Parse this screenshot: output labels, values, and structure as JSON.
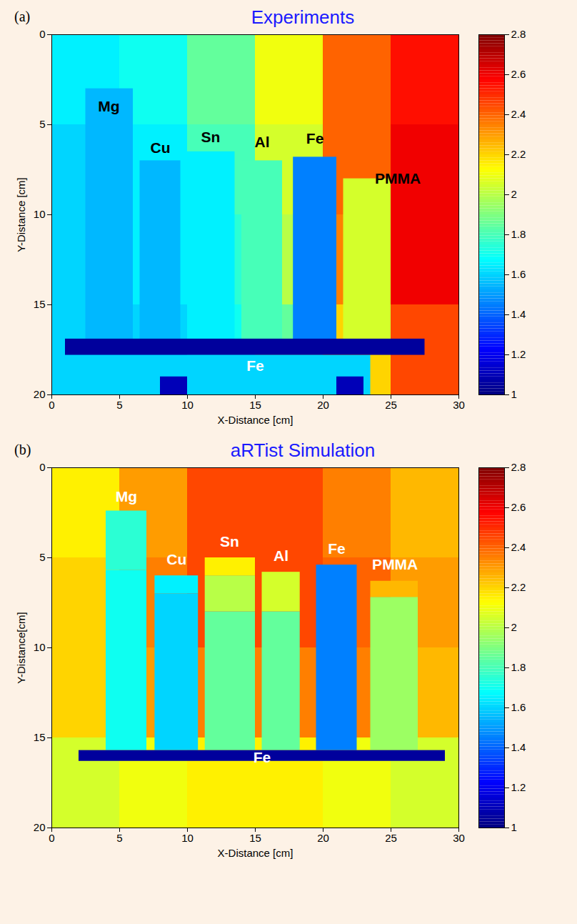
{
  "chart_data": [
    {
      "type": "heatmap",
      "panel": "(a)",
      "title": "Experiments",
      "xlabel": "X-Distance [cm]",
      "ylabel": "Y-Distance [cm]",
      "xlim": [
        0,
        30
      ],
      "ylim": [
        0,
        20
      ],
      "xticks": [
        0,
        5,
        10,
        15,
        20,
        25,
        30
      ],
      "yticks": [
        0,
        5,
        10,
        15,
        20
      ],
      "colorbar": {
        "range": [
          1,
          2.8
        ],
        "ticks": [
          1,
          1.2,
          1.4,
          1.6,
          1.8,
          2,
          2.2,
          2.4,
          2.6,
          2.8
        ]
      },
      "cells": [
        {
          "x1": 0,
          "x2": 5,
          "y1": 0,
          "y2": 5,
          "value": 1.65
        },
        {
          "x1": 5,
          "x2": 10,
          "y1": 0,
          "y2": 5,
          "value": 1.7
        },
        {
          "x1": 10,
          "x2": 15,
          "y1": 0,
          "y2": 5,
          "value": 1.85
        },
        {
          "x1": 15,
          "x2": 20,
          "y1": 0,
          "y2": 5,
          "value": 2.1
        },
        {
          "x1": 20,
          "x2": 25,
          "y1": 0,
          "y2": 5,
          "value": 2.4
        },
        {
          "x1": 25,
          "x2": 30,
          "y1": 0,
          "y2": 5,
          "value": 2.55
        },
        {
          "x1": 0,
          "x2": 5,
          "y1": 5,
          "y2": 10,
          "value": 1.6
        },
        {
          "x1": 5,
          "x2": 10,
          "y1": 5,
          "y2": 10,
          "value": 1.65
        },
        {
          "x1": 10,
          "x2": 15,
          "y1": 5,
          "y2": 10,
          "value": 1.8
        },
        {
          "x1": 15,
          "x2": 20,
          "y1": 5,
          "y2": 10,
          "value": 2.05
        },
        {
          "x1": 20,
          "x2": 25,
          "y1": 5,
          "y2": 10,
          "value": 2.4
        },
        {
          "x1": 25,
          "x2": 30,
          "y1": 5,
          "y2": 10,
          "value": 2.6
        },
        {
          "x1": 0,
          "x2": 5,
          "y1": 10,
          "y2": 15,
          "value": 1.6
        },
        {
          "x1": 5,
          "x2": 10,
          "y1": 10,
          "y2": 15,
          "value": 1.65
        },
        {
          "x1": 10,
          "x2": 15,
          "y1": 10,
          "y2": 15,
          "value": 1.75
        },
        {
          "x1": 15,
          "x2": 20,
          "y1": 10,
          "y2": 15,
          "value": 2.0
        },
        {
          "x1": 20,
          "x2": 25,
          "y1": 10,
          "y2": 15,
          "value": 2.35
        },
        {
          "x1": 25,
          "x2": 30,
          "y1": 10,
          "y2": 15,
          "value": 2.6
        },
        {
          "x1": 0,
          "x2": 5,
          "y1": 15,
          "y2": 20,
          "value": 1.6
        },
        {
          "x1": 5,
          "x2": 10,
          "y1": 15,
          "y2": 20,
          "value": 1.6
        },
        {
          "x1": 10,
          "x2": 15,
          "y1": 15,
          "y2": 20,
          "value": 1.7
        },
        {
          "x1": 15,
          "x2": 20,
          "y1": 15,
          "y2": 20,
          "value": 1.85
        },
        {
          "x1": 20,
          "x2": 25,
          "y1": 15,
          "y2": 20,
          "value": 2.2
        },
        {
          "x1": 25,
          "x2": 30,
          "y1": 15,
          "y2": 20,
          "value": 2.45
        },
        {
          "x1": 2.5,
          "x2": 6,
          "y1": 3,
          "y2": 17,
          "value": 1.55
        },
        {
          "x1": 6.5,
          "x2": 9.5,
          "y1": 7,
          "y2": 17,
          "value": 1.55
        },
        {
          "x1": 10,
          "x2": 13.5,
          "y1": 6.5,
          "y2": 17,
          "value": 1.65
        },
        {
          "x1": 14,
          "x2": 17,
          "y1": 7,
          "y2": 17,
          "value": 1.8
        },
        {
          "x1": 17.8,
          "x2": 21,
          "y1": 6.8,
          "y2": 17,
          "value": 1.45
        },
        {
          "x1": 21.5,
          "x2": 25,
          "y1": 8,
          "y2": 17,
          "value": 2.05
        },
        {
          "x1": 5,
          "x2": 23.5,
          "y1": 17.8,
          "y2": 20,
          "value": 1.6
        },
        {
          "x1": 8,
          "x2": 10,
          "y1": 19,
          "y2": 20,
          "value": 1.1
        },
        {
          "x1": 21,
          "x2": 23,
          "y1": 19,
          "y2": 20,
          "value": 1.1
        },
        {
          "x1": 1,
          "x2": 27.5,
          "y1": 16.9,
          "y2": 17.8,
          "value": 1.05
        }
      ],
      "labels": [
        {
          "text": "Mg",
          "x": 4.2,
          "y": 4,
          "color": "black"
        },
        {
          "text": "Cu",
          "x": 8,
          "y": 6.3,
          "color": "black"
        },
        {
          "text": "Sn",
          "x": 11.7,
          "y": 5.7,
          "color": "black"
        },
        {
          "text": "Al",
          "x": 15.5,
          "y": 6,
          "color": "black"
        },
        {
          "text": "Fe",
          "x": 19.4,
          "y": 5.8,
          "color": "black"
        },
        {
          "text": "PMMA",
          "x": 25.5,
          "y": 8,
          "color": "black"
        },
        {
          "text": "Fe",
          "x": 15,
          "y": 18.4,
          "color": "white"
        }
      ]
    },
    {
      "type": "heatmap",
      "panel": "(b)",
      "title": "aRTist Simulation",
      "xlabel": "X-Distance [cm]",
      "ylabel": "Y-Distance[cm]",
      "xlim": [
        0,
        30
      ],
      "ylim": [
        0,
        20
      ],
      "xticks": [
        0,
        5,
        10,
        15,
        20,
        25,
        30
      ],
      "yticks": [
        0,
        5,
        10,
        15,
        20
      ],
      "colorbar": {
        "range": [
          1,
          2.8
        ],
        "ticks": [
          1,
          1.2,
          1.4,
          1.6,
          1.8,
          2,
          2.2,
          2.4,
          2.6,
          2.8
        ]
      },
      "cells": [
        {
          "x1": 0,
          "x2": 5,
          "y1": 0,
          "y2": 5,
          "value": 2.15
        },
        {
          "x1": 5,
          "x2": 10,
          "y1": 0,
          "y2": 5,
          "value": 2.3
        },
        {
          "x1": 10,
          "x2": 15,
          "y1": 0,
          "y2": 5,
          "value": 2.45
        },
        {
          "x1": 15,
          "x2": 20,
          "y1": 0,
          "y2": 5,
          "value": 2.45
        },
        {
          "x1": 20,
          "x2": 25,
          "y1": 0,
          "y2": 5,
          "value": 2.35
        },
        {
          "x1": 25,
          "x2": 30,
          "y1": 0,
          "y2": 5,
          "value": 2.25
        },
        {
          "x1": 0,
          "x2": 5,
          "y1": 5,
          "y2": 10,
          "value": 2.2
        },
        {
          "x1": 5,
          "x2": 10,
          "y1": 5,
          "y2": 10,
          "value": 2.35
        },
        {
          "x1": 10,
          "x2": 15,
          "y1": 5,
          "y2": 10,
          "value": 2.45
        },
        {
          "x1": 15,
          "x2": 20,
          "y1": 5,
          "y2": 10,
          "value": 2.45
        },
        {
          "x1": 20,
          "x2": 25,
          "y1": 5,
          "y2": 10,
          "value": 2.4
        },
        {
          "x1": 25,
          "x2": 30,
          "y1": 5,
          "y2": 10,
          "value": 2.3
        },
        {
          "x1": 0,
          "x2": 5,
          "y1": 10,
          "y2": 15,
          "value": 2.2
        },
        {
          "x1": 5,
          "x2": 10,
          "y1": 10,
          "y2": 15,
          "value": 2.3
        },
        {
          "x1": 10,
          "x2": 15,
          "y1": 10,
          "y2": 15,
          "value": 2.35
        },
        {
          "x1": 15,
          "x2": 20,
          "y1": 10,
          "y2": 15,
          "value": 2.35
        },
        {
          "x1": 20,
          "x2": 25,
          "y1": 10,
          "y2": 15,
          "value": 2.35
        },
        {
          "x1": 25,
          "x2": 30,
          "y1": 10,
          "y2": 15,
          "value": 2.25
        },
        {
          "x1": 0,
          "x2": 5,
          "y1": 15,
          "y2": 20,
          "value": 2.05
        },
        {
          "x1": 5,
          "x2": 10,
          "y1": 15,
          "y2": 20,
          "value": 2.1
        },
        {
          "x1": 10,
          "x2": 15,
          "y1": 15,
          "y2": 20,
          "value": 2.15
        },
        {
          "x1": 15,
          "x2": 20,
          "y1": 15,
          "y2": 20,
          "value": 2.15
        },
        {
          "x1": 20,
          "x2": 25,
          "y1": 15,
          "y2": 20,
          "value": 2.1
        },
        {
          "x1": 25,
          "x2": 30,
          "y1": 15,
          "y2": 20,
          "value": 2.05
        },
        {
          "x1": 4,
          "x2": 7,
          "y1": 2.4,
          "y2": 5.7,
          "value": 1.75
        },
        {
          "x1": 4,
          "x2": 7,
          "y1": 5.7,
          "y2": 15.7,
          "value": 1.7
        },
        {
          "x1": 7.6,
          "x2": 10.8,
          "y1": 6,
          "y2": 7,
          "value": 1.65
        },
        {
          "x1": 7.6,
          "x2": 10.8,
          "y1": 7,
          "y2": 15.7,
          "value": 1.6
        },
        {
          "x1": 11.3,
          "x2": 15,
          "y1": 5,
          "y2": 6,
          "value": 2.15
        },
        {
          "x1": 11.3,
          "x2": 15,
          "y1": 6,
          "y2": 8,
          "value": 2.0
        },
        {
          "x1": 11.3,
          "x2": 15,
          "y1": 8,
          "y2": 15.7,
          "value": 1.85
        },
        {
          "x1": 15.5,
          "x2": 18.3,
          "y1": 5.8,
          "y2": 8,
          "value": 2.05
        },
        {
          "x1": 15.5,
          "x2": 18.3,
          "y1": 8,
          "y2": 15.7,
          "value": 1.85
        },
        {
          "x1": 19.5,
          "x2": 22.5,
          "y1": 5.4,
          "y2": 15.7,
          "value": 1.45
        },
        {
          "x1": 23.5,
          "x2": 27,
          "y1": 6.3,
          "y2": 7.2,
          "value": 2.25
        },
        {
          "x1": 23.5,
          "x2": 27,
          "y1": 7.2,
          "y2": 15.7,
          "value": 1.95
        },
        {
          "x1": 2,
          "x2": 29,
          "y1": 15.7,
          "y2": 16.3,
          "value": 1.05
        }
      ],
      "labels": [
        {
          "text": "Mg",
          "x": 5.5,
          "y": 1.6,
          "color": "white"
        },
        {
          "text": "Cu",
          "x": 9.2,
          "y": 5.1,
          "color": "white"
        },
        {
          "text": "Sn",
          "x": 13.1,
          "y": 4.1,
          "color": "white"
        },
        {
          "text": "Al",
          "x": 16.9,
          "y": 4.9,
          "color": "white"
        },
        {
          "text": "Fe",
          "x": 21,
          "y": 4.5,
          "color": "white"
        },
        {
          "text": "PMMA",
          "x": 25.3,
          "y": 5.4,
          "color": "white"
        },
        {
          "text": "Fe",
          "x": 15.5,
          "y": 16.1,
          "color": "white"
        }
      ]
    }
  ]
}
